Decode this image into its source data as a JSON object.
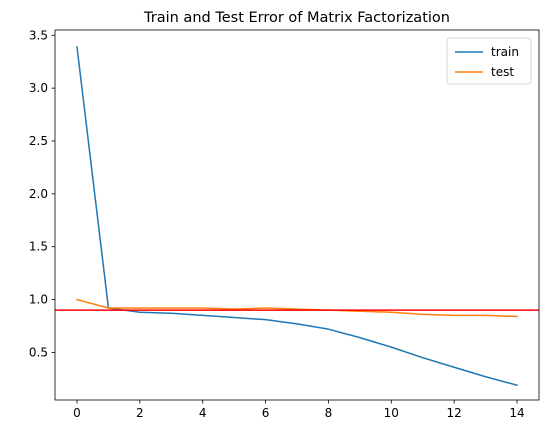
{
  "chart_data": {
    "type": "line",
    "title": "Train and Test Error of Matrix Factorization",
    "xlabel": "",
    "ylabel": "",
    "x": [
      0,
      1,
      2,
      3,
      4,
      5,
      6,
      7,
      8,
      9,
      10,
      11,
      12,
      13,
      14
    ],
    "xlim": [
      -0.7,
      14.7
    ],
    "ylim": [
      0.05,
      3.55
    ],
    "xticks": [
      "0",
      "2",
      "4",
      "6",
      "8",
      "10",
      "12",
      "14"
    ],
    "yticks": [
      "0.5",
      "1.0",
      "1.5",
      "2.0",
      "2.5",
      "3.0",
      "3.5"
    ],
    "grid": false,
    "legend_position": "top-right",
    "series": [
      {
        "name": "train",
        "color": "#1f77b4",
        "values": [
          3.39,
          0.92,
          0.88,
          0.87,
          0.85,
          0.83,
          0.81,
          0.77,
          0.72,
          0.64,
          0.55,
          0.45,
          0.36,
          0.27,
          0.19
        ]
      },
      {
        "name": "test",
        "color": "#ff7f0e",
        "values": [
          1.0,
          0.92,
          0.92,
          0.92,
          0.92,
          0.91,
          0.92,
          0.91,
          0.9,
          0.89,
          0.88,
          0.86,
          0.85,
          0.85,
          0.84
        ]
      }
    ],
    "reference_line": {
      "y": 0.9,
      "color": "#ff0000"
    }
  }
}
